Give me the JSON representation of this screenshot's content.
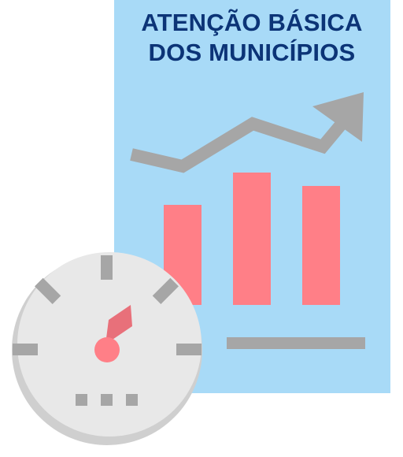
{
  "title": {
    "line1": "ATENÇÃO BÁSICA",
    "line2": "DOS MUNICÍPIOS"
  },
  "illustration": {
    "icons": [
      "report-chart-icon",
      "trend-arrow-icon",
      "speedometer-icon"
    ],
    "colors": {
      "panel": "#a8daf7",
      "title_text": "#0c3477",
      "bars": "#ff7f87",
      "trend_line": "#a6a6a6",
      "gauge_face": "#e8e8e8",
      "gauge_shadow": "#cfcfcf",
      "gauge_ticks": "#a6a6a6",
      "needle": "#e8707a",
      "needle_hub": "#ff7f87"
    }
  }
}
